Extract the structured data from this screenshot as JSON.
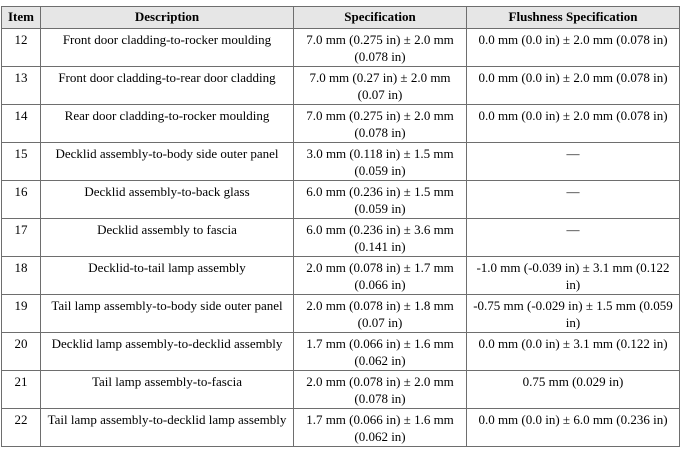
{
  "table": {
    "headers": {
      "item": "Item",
      "description": "Description",
      "specification": "Specification",
      "flushness": "Flushness Specification"
    },
    "rows": [
      {
        "item": "12",
        "description": "Front door cladding-to-rocker moulding",
        "specification": "7.0 mm (0.275 in) ± 2.0 mm (0.078 in)",
        "flushness": "0.0 mm (0.0 in) ± 2.0 mm (0.078 in)"
      },
      {
        "item": "13",
        "description": "Front door cladding-to-rear door cladding",
        "specification": "7.0 mm (0.27 in) ± 2.0 mm (0.07 in)",
        "flushness": "0.0 mm (0.0 in) ± 2.0 mm (0.078 in)"
      },
      {
        "item": "14",
        "description": "Rear door cladding-to-rocker moulding",
        "specification": "7.0 mm (0.275 in) ± 2.0 mm (0.078 in)",
        "flushness": "0.0 mm (0.0 in) ± 2.0 mm (0.078 in)"
      },
      {
        "item": "15",
        "description": "Decklid assembly-to-body side outer panel",
        "specification": "3.0 mm (0.118 in) ± 1.5 mm (0.059 in)",
        "flushness": "—"
      },
      {
        "item": "16",
        "description": "Decklid assembly-to-back glass",
        "specification": "6.0 mm (0.236 in) ± 1.5 mm (0.059 in)",
        "flushness": "—"
      },
      {
        "item": "17",
        "description": "Decklid assembly to fascia",
        "specification": "6.0 mm (0.236 in) ± 3.6 mm (0.141 in)",
        "flushness": "—"
      },
      {
        "item": "18",
        "description": "Decklid-to-tail lamp assembly",
        "specification": "2.0 mm (0.078 in) ± 1.7 mm (0.066 in)",
        "flushness": "-1.0 mm (-0.039 in) ± 3.1 mm (0.122 in)"
      },
      {
        "item": "19",
        "description": "Tail lamp assembly-to-body side outer panel",
        "specification": "2.0 mm (0.078 in) ± 1.8 mm (0.07 in)",
        "flushness": "-0.75 mm (-0.029 in) ± 1.5 mm (0.059 in)"
      },
      {
        "item": "20",
        "description": "Decklid lamp assembly-to-decklid assembly",
        "specification": "1.7 mm (0.066 in) ± 1.6 mm (0.062 in)",
        "flushness": "0.0 mm (0.0 in) ± 3.1 mm (0.122 in)"
      },
      {
        "item": "21",
        "description": "Tail lamp assembly-to-fascia",
        "specification": "2.0 mm (0.078 in) ± 2.0 mm (0.078 in)",
        "flushness": "0.75 mm (0.029 in)"
      },
      {
        "item": "22",
        "description": "Tail lamp assembly-to-decklid lamp assembly",
        "specification": "1.7 mm (0.066 in) ± 1.6 mm (0.062 in)",
        "flushness": "0.0 mm (0.0 in) ± 6.0 mm (0.236 in)"
      }
    ]
  }
}
